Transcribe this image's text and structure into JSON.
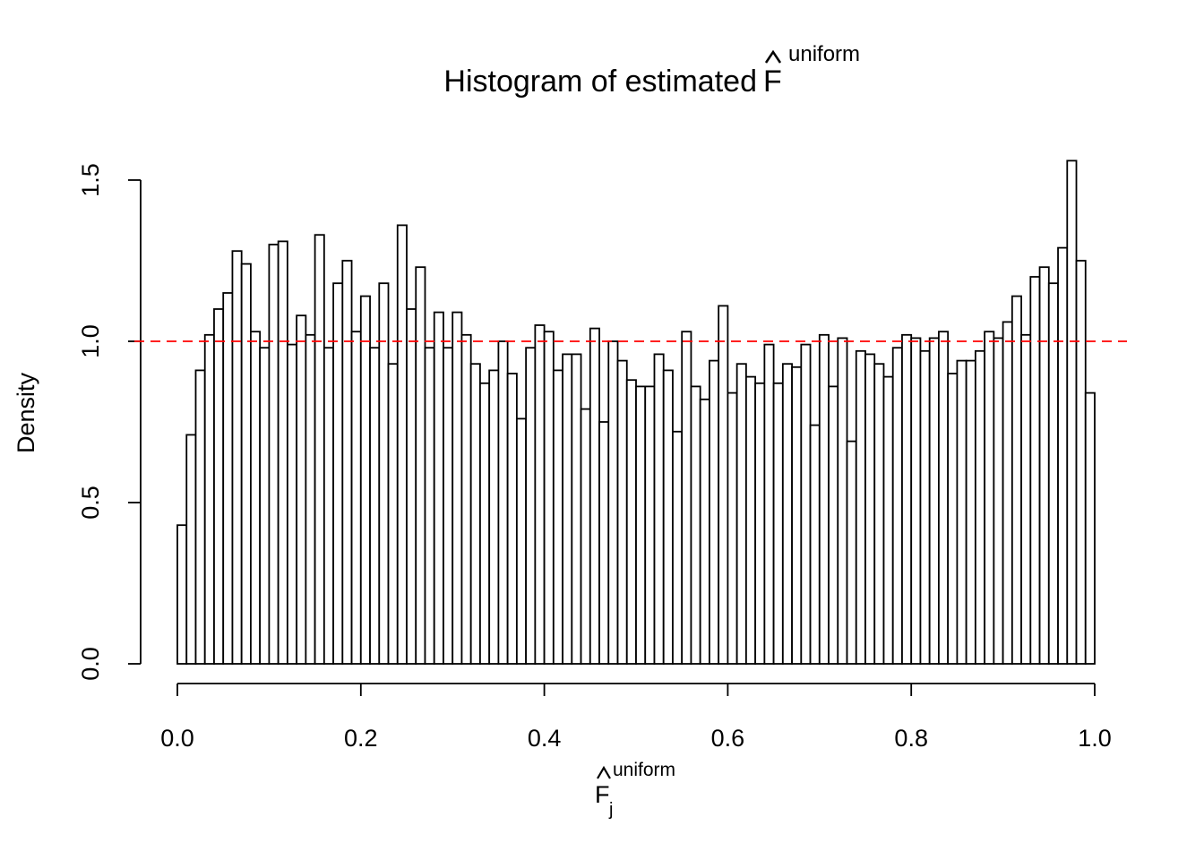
{
  "chart_data": {
    "type": "histogram",
    "title": "Histogram of estimated",
    "title_symbol": "F",
    "title_superscript": "uniform",
    "x_label": "F",
    "x_label_subscript": "j",
    "x_label_superscript": "uniform",
    "y_label": "Density",
    "bins": [
      0,
      0.01,
      0.02,
      0.03,
      0.04,
      0.05,
      0.06,
      0.07,
      0.08,
      0.09,
      0.1,
      0.11,
      0.12,
      0.13,
      0.14,
      0.15,
      0.16,
      0.17,
      0.18,
      0.19,
      0.2,
      0.21,
      0.22,
      0.23,
      0.24,
      0.25,
      0.26,
      0.27,
      0.28,
      0.29,
      0.3,
      0.31,
      0.32,
      0.33,
      0.34,
      0.35,
      0.36,
      0.37,
      0.38,
      0.39,
      0.4,
      0.41,
      0.42,
      0.43,
      0.44,
      0.45,
      0.46,
      0.47,
      0.48,
      0.49,
      0.5,
      0.51,
      0.52,
      0.53,
      0.54,
      0.55,
      0.56,
      0.57,
      0.58,
      0.59,
      0.6,
      0.61,
      0.62,
      0.63,
      0.64,
      0.65,
      0.66,
      0.67,
      0.68,
      0.69,
      0.7,
      0.71,
      0.72,
      0.73,
      0.74,
      0.75,
      0.76,
      0.77,
      0.78,
      0.79,
      0.8,
      0.81,
      0.82,
      0.83,
      0.84,
      0.85,
      0.86,
      0.87,
      0.88,
      0.89,
      0.9,
      0.91,
      0.92,
      0.93,
      0.94,
      0.95,
      0.96,
      0.97,
      0.98,
      0.99,
      1
    ],
    "values": [
      0.43,
      0.71,
      0.91,
      1.02,
      1.1,
      1.15,
      1.28,
      1.24,
      1.03,
      0.98,
      1.3,
      1.31,
      0.99,
      1.08,
      1.02,
      1.33,
      0.98,
      1.18,
      1.25,
      1.03,
      1.14,
      0.98,
      1.18,
      0.93,
      1.36,
      1.1,
      1.23,
      0.98,
      1.09,
      0.98,
      1.09,
      1.02,
      0.93,
      0.87,
      0.91,
      1.0,
      0.9,
      0.76,
      0.98,
      1.05,
      1.03,
      0.91,
      0.96,
      0.96,
      0.79,
      1.04,
      0.75,
      1.0,
      0.94,
      0.88,
      0.86,
      0.86,
      0.96,
      0.91,
      0.72,
      1.03,
      0.86,
      0.82,
      0.94,
      1.11,
      0.84,
      0.93,
      0.89,
      0.87,
      0.99,
      0.87,
      0.93,
      0.92,
      0.99,
      0.74,
      1.02,
      0.86,
      1.01,
      0.69,
      0.97,
      0.96,
      0.93,
      0.89,
      0.98,
      1.02,
      1.01,
      0.97,
      1.01,
      1.03,
      0.9,
      0.94,
      0.94,
      0.97,
      1.03,
      1.01,
      1.06,
      1.14,
      1.02,
      1.2,
      1.23,
      1.18,
      1.29,
      1.56,
      1.25,
      0.84
    ],
    "color": "#ffffff",
    "edge_color": "#000000",
    "hline": 1,
    "hline_color": "#ff0000",
    "xlim": [
      0,
      1
    ],
    "ylim": [
      0,
      1.5
    ],
    "xticks": [
      {
        "value": 0,
        "label": "0.0"
      },
      0.2,
      0.4,
      0.6,
      0.8,
      {
        "value": 1,
        "label": "1.0"
      }
    ],
    "yticks": [
      {
        "value": 0,
        "label": "0.0"
      },
      0.5,
      {
        "value": 1,
        "label": "1.0"
      },
      1.5
    ]
  }
}
